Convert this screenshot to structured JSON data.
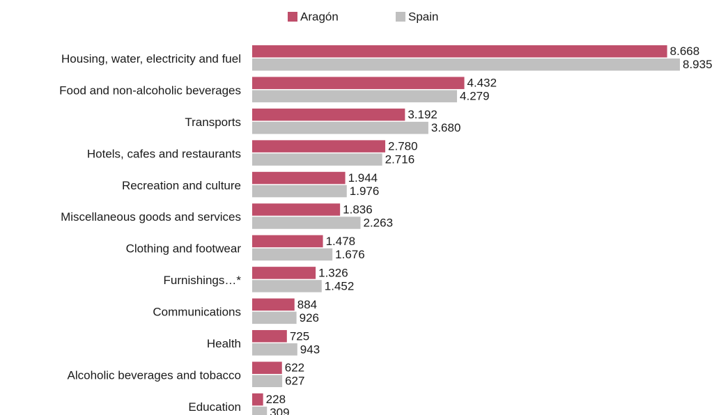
{
  "chart_data": {
    "type": "bar",
    "orientation": "horizontal",
    "categories": [
      "Housing, water, electricity and fuel",
      "Food and non-alcoholic beverages",
      "Transports",
      "Hotels, cafes and restaurants",
      "Recreation and culture",
      "Miscellaneous goods and services",
      "Clothing and footwear",
      "Furnishings…*",
      "Communications",
      "Health",
      "Alcoholic beverages and tobacco",
      "Education"
    ],
    "series": [
      {
        "name": "Aragón",
        "color": "#bf4e6a",
        "values": [
          8668,
          4432,
          3192,
          2780,
          1944,
          1836,
          1478,
          1326,
          884,
          725,
          622,
          228
        ],
        "value_labels": [
          "8.668",
          "4.432",
          "3.192",
          "2.780",
          "1.944",
          "1.836",
          "1.478",
          "1.326",
          "884",
          "725",
          "622",
          "228"
        ]
      },
      {
        "name": "Spain",
        "color": "#c0c0c0",
        "values": [
          8935,
          4279,
          3680,
          2716,
          1976,
          2263,
          1676,
          1452,
          926,
          943,
          627,
          309
        ],
        "value_labels": [
          "8.935",
          "4.279",
          "3.680",
          "2.716",
          "1.976",
          "2.263",
          "1.676",
          "1.452",
          "926",
          "943",
          "627",
          "309"
        ]
      }
    ],
    "legend": "top"
  }
}
